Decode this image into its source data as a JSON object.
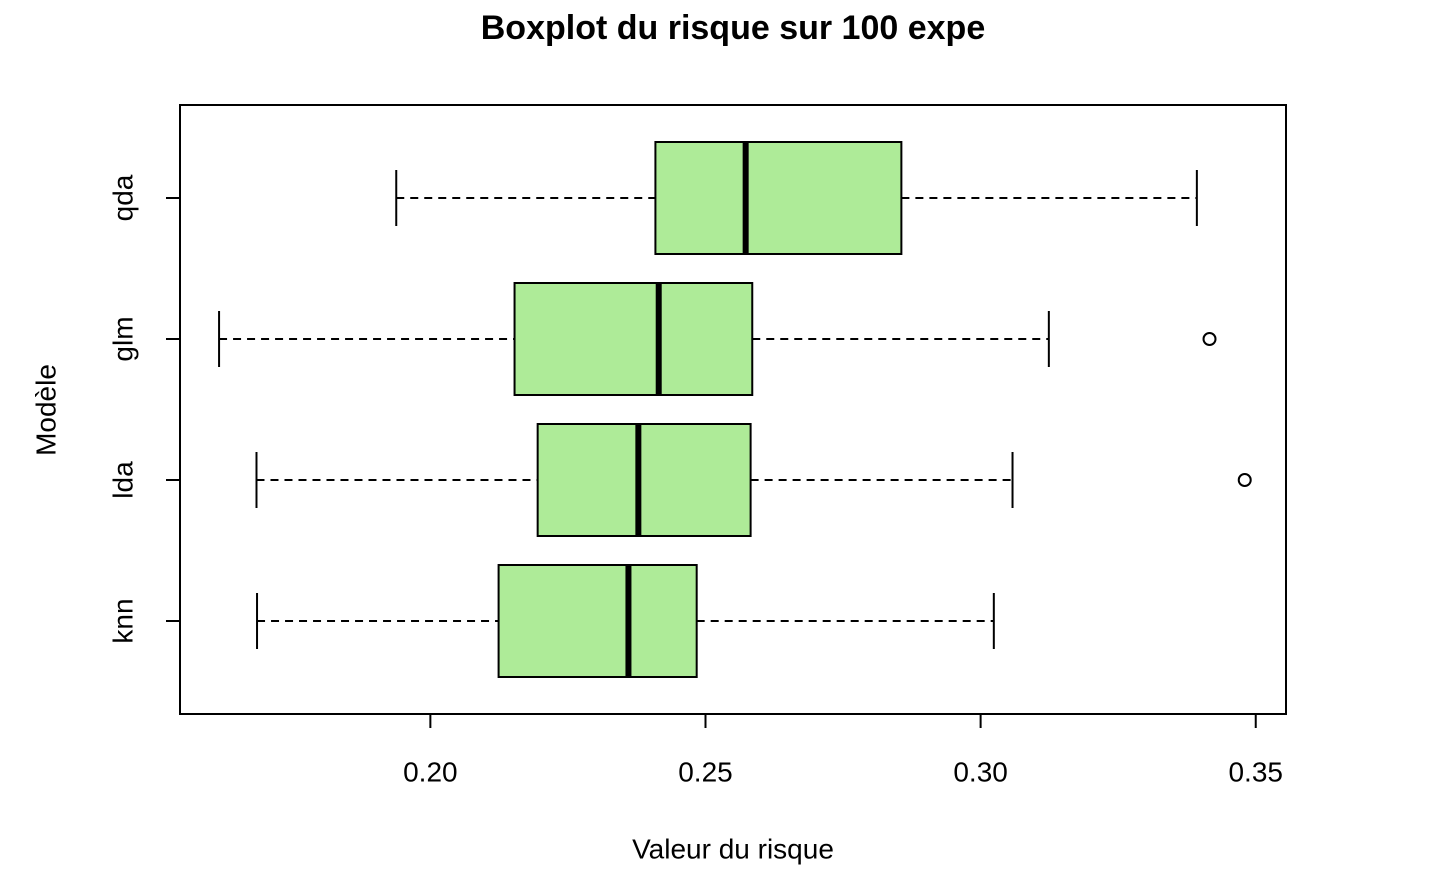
{
  "chart_data": {
    "type": "boxplot",
    "orientation": "horizontal",
    "title": "Boxplot du risque sur 100 expe",
    "x_label": "Valeur du risque",
    "y_label": "Modèle",
    "categories": [
      "knn",
      "lda",
      "glm",
      "qda"
    ],
    "boxes": [
      {
        "low": 0.1685,
        "q1": 0.2124,
        "median": 0.236,
        "q3": 0.2484,
        "high": 0.3024,
        "outliers": []
      },
      {
        "low": 0.1684,
        "q1": 0.2195,
        "median": 0.2378,
        "q3": 0.2582,
        "high": 0.3058,
        "outliers": [
          0.348
        ]
      },
      {
        "low": 0.1616,
        "q1": 0.2153,
        "median": 0.2415,
        "q3": 0.2585,
        "high": 0.3124,
        "outliers": [
          0.3416
        ]
      },
      {
        "low": 0.1938,
        "q1": 0.2409,
        "median": 0.2573,
        "q3": 0.2856,
        "high": 0.3393,
        "outliers": []
      }
    ],
    "color": "#aeeb98",
    "xlim": [
      0.1545,
      0.3555
    ],
    "xticks": [
      {
        "value": 0.2,
        "label": "0.20"
      },
      {
        "value": 0.25,
        "label": "0.25"
      },
      {
        "value": 0.3,
        "label": "0.30"
      },
      {
        "value": 0.35,
        "label": "0.35"
      }
    ]
  }
}
